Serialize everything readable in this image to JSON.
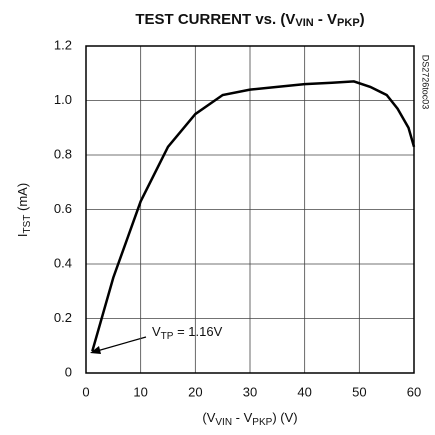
{
  "chart_data": {
    "type": "line",
    "title": [
      {
        "text": "TEST CURRENT vs. (V"
      },
      {
        "text": "VIN",
        "sub": true
      },
      {
        "text": " - V"
      },
      {
        "text": "PKP",
        "sub": true
      },
      {
        "text": ")"
      }
    ],
    "y_label": [
      {
        "text": "I"
      },
      {
        "text": "TST",
        "sub": true
      },
      {
        "text": " (mA)"
      }
    ],
    "x_label": [
      {
        "text": "(V"
      },
      {
        "text": "VIN",
        "sub": true
      },
      {
        "text": " - V"
      },
      {
        "text": "PKP",
        "sub": true
      },
      {
        "text": ") (V)"
      }
    ],
    "annotation": [
      {
        "text": "V"
      },
      {
        "text": "TP",
        "sub": true
      },
      {
        "text": " = 1.16V"
      }
    ],
    "side_note": "DS2726toc03",
    "x": [
      1.16,
      5,
      10,
      15,
      20,
      25,
      30,
      35,
      40,
      45,
      49,
      52,
      55,
      57,
      59,
      60
    ],
    "series": [
      {
        "color": "#000000",
        "values": [
          0.08,
          0.35,
          0.63,
          0.83,
          0.95,
          1.02,
          1.04,
          1.05,
          1.06,
          1.065,
          1.07,
          1.05,
          1.02,
          0.97,
          0.9,
          0.83
        ]
      }
    ],
    "xlim": [
      0,
      60
    ],
    "xticks": [
      0,
      10,
      20,
      30,
      40,
      50,
      60
    ],
    "ylim": [
      0,
      1.2
    ],
    "yticks": [
      0,
      0.2,
      0.4,
      0.6,
      0.8,
      {
        "value": 1,
        "label": "1.0"
      },
      1.2
    ],
    "grid": true
  }
}
